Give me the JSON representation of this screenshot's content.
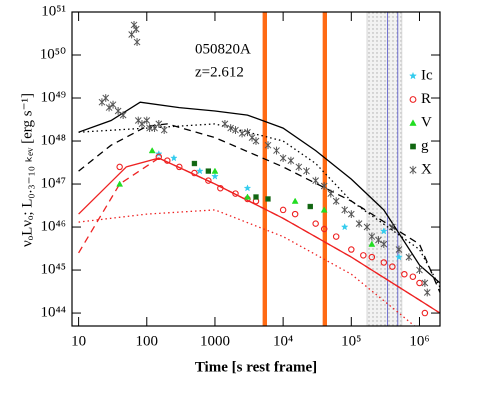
{
  "chart_data": {
    "type": "scatter",
    "x_label": "Time [s rest frame]",
    "y_label": "νₒLνₒ;  L₀.₃₋₁₀ ₖₑᵥ [erg s⁻¹]",
    "annotations": [
      "050820A",
      "z=2.612"
    ],
    "log_x": true,
    "log_y": true,
    "xlim": [
      8,
      2000000
    ],
    "ylim": [
      5e+43,
      1e+51
    ],
    "xticks": [
      10,
      100,
      1000,
      {
        "value": 10000,
        "label": "10⁴"
      },
      {
        "value": 100000,
        "label": "10⁵"
      },
      {
        "value": 1000000,
        "label": "10⁶"
      }
    ],
    "yticks": [
      {
        "value": 1e+44,
        "label": "10⁴⁴"
      },
      {
        "value": 1e+45,
        "label": "10⁴⁵"
      },
      {
        "value": 1e+46,
        "label": "10⁴⁶"
      },
      {
        "value": 1e+47,
        "label": "10⁴⁷"
      },
      {
        "value": 1e+48,
        "label": "10⁴⁸"
      },
      {
        "value": 1e+49,
        "label": "10⁴⁹"
      },
      {
        "value": 1e+50,
        "label": "10⁵⁰"
      },
      {
        "value": 1e+51,
        "label": "10⁵¹"
      }
    ],
    "bands": [
      {
        "x": [
          5000,
          5800
        ],
        "color": "#ff6a13"
      },
      {
        "x": [
          38000,
          44000
        ],
        "color": "#ff6a13"
      },
      {
        "x": [
          170000,
          550000
        ],
        "color": "#d8d8d8"
      }
    ],
    "vlines": [
      {
        "x": 340000,
        "color": "#7070d0"
      },
      {
        "x": 480000,
        "color": "#7070d0"
      }
    ],
    "series": [
      {
        "name": "Ic",
        "color": "#33ccee",
        "marker": "star",
        "x": [
          150,
          250,
          600,
          1000,
          3000,
          80000,
          300000,
          500000
        ],
        "values": [
          5e+47,
          4e+47,
          2e+47,
          1.5e+47,
          8e+46,
          1e+46,
          8e+45,
          2e+45
        ]
      },
      {
        "name": "R",
        "color": "#ee2222",
        "marker": "circle",
        "x": [
          40,
          150,
          200,
          300,
          500,
          800,
          1200,
          2000,
          3000,
          4000,
          10000,
          15000,
          30000,
          40000,
          60000,
          100000,
          150000,
          200000,
          300000,
          400000,
          600000,
          800000,
          1000000,
          1200000
        ],
        "values": [
          2.5e+47,
          4.3e+47,
          3.5e+47,
          2.5e+47,
          1.8e+47,
          1.2e+47,
          8e+46,
          6e+46,
          4.5e+46,
          4e+46,
          2.5e+46,
          2e+46,
          1.2e+46,
          9e+45,
          6e+45,
          3e+45,
          2.2e+45,
          2e+45,
          1.5e+45,
          1.2e+45,
          8e+44,
          7e+44,
          5e+44,
          1e+44
        ]
      },
      {
        "name": "V",
        "color": "#22dd22",
        "marker": "triangle",
        "x": [
          40,
          120,
          1000,
          3000,
          15000,
          40000,
          200000
        ],
        "values": [
          1e+47,
          6e+47,
          2e+47,
          5e+46,
          4e+46,
          2.5e+46,
          4e+45
        ]
      },
      {
        "name": "g",
        "color": "#116611",
        "marker": "square",
        "x": [
          500,
          800,
          4000,
          6000,
          25000
        ],
        "values": [
          3e+47,
          2e+47,
          5e+46,
          4.5e+46,
          3e+46
        ]
      },
      {
        "name": "X",
        "color": "#555555",
        "marker": "cross",
        "x": [
          22,
          25,
          28,
          32,
          38,
          45,
          60,
          65,
          70,
          72,
          75,
          85,
          100,
          110,
          130,
          150,
          180,
          1400,
          1700,
          2000,
          2500,
          3000,
          3500,
          4000,
          6000,
          8000,
          10000,
          13000,
          17000,
          22000,
          30000,
          40000,
          50000,
          60000,
          80000,
          100000,
          130000,
          170000,
          200000,
          250000,
          300000,
          400000,
          500000,
          700000,
          1000000,
          1200000,
          1300000
        ],
        "values": [
          8e+48,
          1e+49,
          6e+48,
          7e+48,
          5e+48,
          4e+48,
          3e+50,
          5e+50,
          4e+50,
          2e+50,
          3e+48,
          2.5e+48,
          3e+48,
          2e+48,
          2e+48,
          2.5e+48,
          1.8e+48,
          2.5e+48,
          2e+48,
          1.8e+48,
          1.5e+48,
          1.6e+48,
          1.2e+48,
          1e+48,
          8e+47,
          6e+47,
          4e+47,
          3.5e+47,
          2.5e+47,
          2e+47,
          1.2e+47,
          9e+46,
          6e+46,
          4e+46,
          2.5e+46,
          2e+46,
          1.2e+46,
          1e+46,
          6e+45,
          5e+45,
          4e+45,
          1e+46,
          3e+45,
          2e+45,
          1e+45,
          5e+44,
          3e+44
        ]
      }
    ],
    "curves": [
      {
        "color": "#000000",
        "dash": "solid",
        "x": [
          10,
          30,
          80,
          300,
          1000,
          3000,
          10000,
          30000,
          100000,
          300000,
          1000000,
          2000000
        ],
        "values": [
          1.6e+48,
          3e+48,
          8e+48,
          6e+48,
          5e+48,
          4e+48,
          2e+48,
          6e+47,
          1.3e+47,
          2.5e+46,
          1.3e+45,
          5e+44
        ]
      },
      {
        "color": "#000000",
        "dash": "dashed",
        "x": [
          10,
          30,
          100,
          200,
          1000,
          10000,
          100000,
          1000000,
          2000000
        ],
        "values": [
          2e+47,
          8e+47,
          2.2e+48,
          2.5e+48,
          1.2e+48,
          2.5e+47,
          4e+46,
          4e+45,
          3e+44
        ]
      },
      {
        "color": "#000000",
        "dash": "dotted",
        "x": [
          10,
          100,
          1000,
          10000,
          30000,
          100000,
          1000000,
          2000000
        ],
        "values": [
          1.6e+48,
          2e+48,
          2.5e+48,
          1e+48,
          3e+47,
          4e+46,
          3e+45,
          4e+44
        ]
      },
      {
        "color": "#ee2222",
        "dash": "solid",
        "x": [
          10,
          50,
          150,
          1000,
          10000,
          100000,
          1000000,
          2000000
        ],
        "values": [
          2e+46,
          2.5e+47,
          4e+47,
          1e+47,
          1.6e+46,
          2e+45,
          2e+44,
          1e+44
        ]
      },
      {
        "color": "#ee2222",
        "dash": "dashed",
        "x": [
          10,
          40,
          150,
          1000,
          10000,
          100000,
          1000000,
          2000000
        ],
        "values": [
          2.5e+45,
          1e+47,
          4e+47,
          1e+47,
          1.6e+46,
          2e+45,
          2e+44,
          1e+44
        ]
      },
      {
        "color": "#ee2222",
        "dash": "dotted",
        "x": [
          10,
          100,
          1000,
          10000,
          100000,
          500000,
          1000000
        ],
        "values": [
          1.3e+46,
          2e+46,
          2.5e+46,
          6e+45,
          8e+44,
          1e+44,
          4e+43
        ]
      }
    ]
  }
}
